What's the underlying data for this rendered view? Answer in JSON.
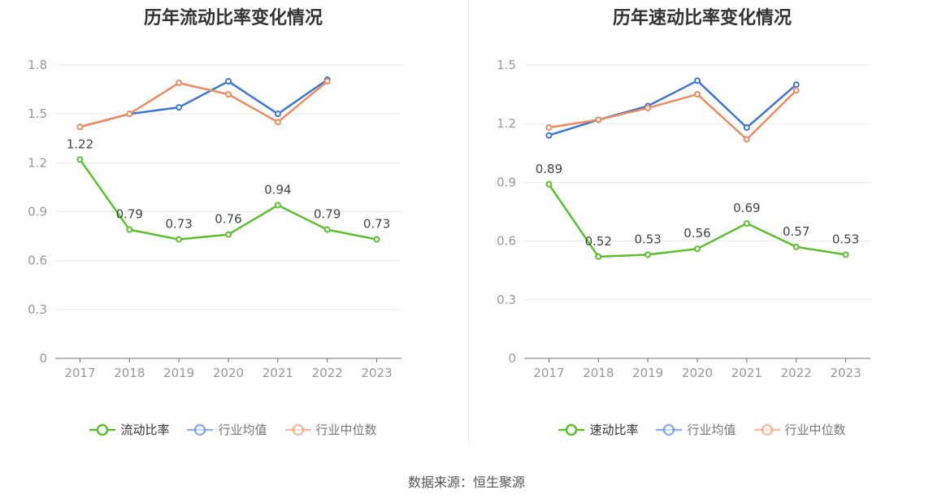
{
  "chart_data": [
    {
      "type": "line",
      "title": "历年流动比率变化情况",
      "categories": [
        "2017",
        "2018",
        "2019",
        "2020",
        "2021",
        "2022",
        "2023"
      ],
      "ylim": [
        0,
        1.8
      ],
      "yticks": [
        "0",
        "0.3",
        "0.6",
        "0.9",
        "1.2",
        "1.5",
        "1.8"
      ],
      "grid": true,
      "legend_position": "bottom",
      "series": [
        {
          "name": "流动比率",
          "color": "#5ac12b",
          "labels": true,
          "values": [
            1.22,
            0.79,
            0.73,
            0.76,
            0.94,
            0.79,
            0.73
          ]
        },
        {
          "name": "行业均值",
          "color": "#3a76d8",
          "labels": false,
          "values": [
            1.42,
            1.5,
            1.54,
            1.7,
            1.5,
            1.71,
            null
          ]
        },
        {
          "name": "行业中位数",
          "color": "#f08a5d",
          "labels": false,
          "values": [
            1.42,
            1.5,
            1.69,
            1.62,
            1.45,
            1.7,
            null
          ]
        }
      ]
    },
    {
      "type": "line",
      "title": "历年速动比率变化情况",
      "categories": [
        "2017",
        "2018",
        "2019",
        "2020",
        "2021",
        "2022",
        "2023"
      ],
      "ylim": [
        0,
        1.5
      ],
      "yticks": [
        "0",
        "0.3",
        "0.6",
        "0.9",
        "1.2",
        "1.5"
      ],
      "grid": true,
      "legend_position": "bottom",
      "series": [
        {
          "name": "速动比率",
          "color": "#5ac12b",
          "labels": true,
          "values": [
            0.89,
            0.52,
            0.53,
            0.56,
            0.69,
            0.57,
            0.53
          ]
        },
        {
          "name": "行业均值",
          "color": "#3a76d8",
          "labels": false,
          "values": [
            1.14,
            1.22,
            1.29,
            1.42,
            1.18,
            1.4,
            null
          ]
        },
        {
          "name": "行业中位数",
          "color": "#f08a5d",
          "labels": false,
          "values": [
            1.18,
            1.22,
            1.28,
            1.35,
            1.12,
            1.37,
            null
          ]
        }
      ]
    }
  ],
  "source_text": "数据来源：恒生聚源"
}
